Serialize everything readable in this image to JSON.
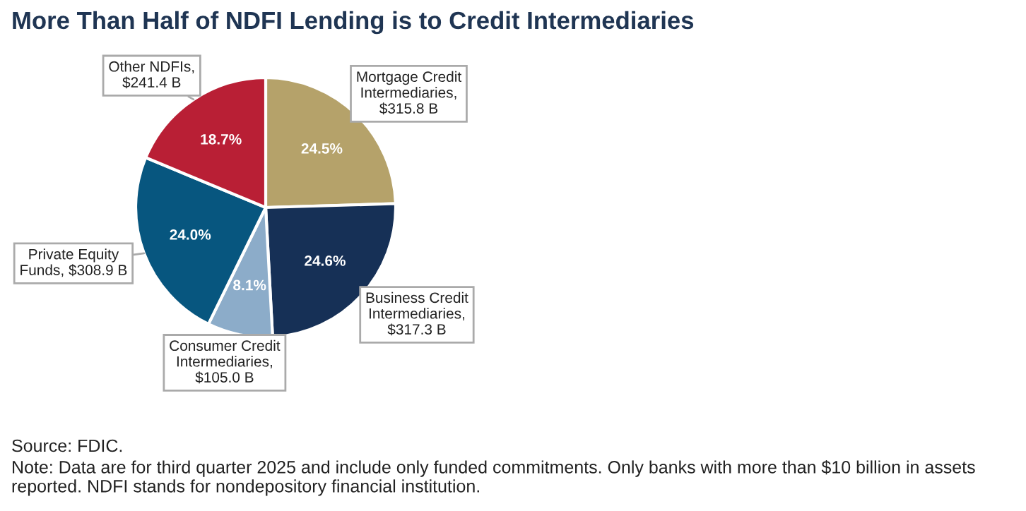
{
  "chart_data": {
    "type": "pie",
    "title": "More Than Half of NDFI Lending is to Credit Intermediaries",
    "categories": [
      "Mortgage Credit\nIntermediaries,\n$315.8 B",
      "Business Credit\nIntermediaries,\n$317.3 B",
      "Consumer Credit\nIntermediaries,\n$105.0 B",
      "Private Equity\nFunds, $308.9 B",
      "Other NDFIs,\n$241.4 B"
    ],
    "values": [
      24.5,
      24.6,
      8.1,
      24.0,
      18.7
    ],
    "value_labels": [
      "24.5%",
      "24.6%",
      "8.1%",
      "24.0%",
      "18.7%"
    ],
    "colors": [
      "#b5a26a",
      "#163056",
      "#8cacc9",
      "#07567f",
      "#b91f35"
    ],
    "legend": false,
    "annotations": [
      "Source: FDIC.",
      "Note: Data are for third quarter 2025 and include only funded commitments. Only banks with more than $10 billion in assets reported. NDFI stands for nondepository financial institution."
    ]
  }
}
